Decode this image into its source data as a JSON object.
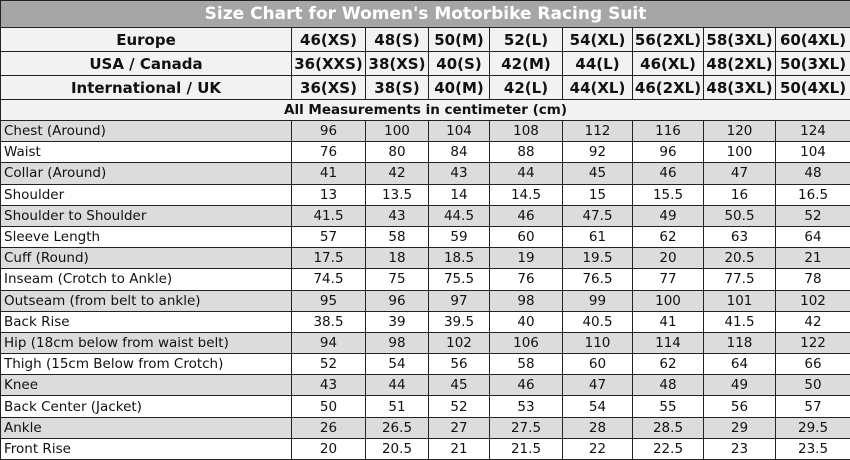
{
  "title": "Size Chart for Women's Motorbike Racing Suit",
  "size_rows": [
    {
      "label": "Europe",
      "sizes": [
        "46(XS)",
        "48(S)",
        "50(M)",
        "52(L)",
        "54(XL)",
        "56(2XL)",
        "58(3XL)",
        "60(4XL)"
      ]
    },
    {
      "label": "USA / Canada",
      "sizes": [
        "36(XXS)",
        "38(XS)",
        "40(S)",
        "42(M)",
        "44(L)",
        "46(XL)",
        "48(2XL)",
        "50(3XL)"
      ]
    },
    {
      "label": "International / UK",
      "sizes": [
        "36(XS)",
        "38(S)",
        "40(M)",
        "42(L)",
        "44(XL)",
        "46(2XL)",
        "48(3XL)",
        "50(4XL)"
      ]
    }
  ],
  "note": "All Measurements in centimeter (cm)",
  "measurements": [
    {
      "label": "Chest (Around)",
      "values": [
        "96",
        "100",
        "104",
        "108",
        "112",
        "116",
        "120",
        "124"
      ]
    },
    {
      "label": "Waist",
      "values": [
        "76",
        "80",
        "84",
        "88",
        "92",
        "96",
        "100",
        "104"
      ]
    },
    {
      "label": "Collar (Around)",
      "values": [
        "41",
        "42",
        "43",
        "44",
        "45",
        "46",
        "47",
        "48"
      ]
    },
    {
      "label": "Shoulder",
      "values": [
        "13",
        "13.5",
        "14",
        "14.5",
        "15",
        "15.5",
        "16",
        "16.5"
      ]
    },
    {
      "label": "Shoulder to Shoulder",
      "values": [
        "41.5",
        "43",
        "44.5",
        "46",
        "47.5",
        "49",
        "50.5",
        "52"
      ]
    },
    {
      "label": "Sleeve Length",
      "values": [
        "57",
        "58",
        "59",
        "60",
        "61",
        "62",
        "63",
        "64"
      ]
    },
    {
      "label": "Cuff (Round)",
      "values": [
        "17.5",
        "18",
        "18.5",
        "19",
        "19.5",
        "20",
        "20.5",
        "21"
      ]
    },
    {
      "label": "Inseam (Crotch to Ankle)",
      "values": [
        "74.5",
        "75",
        "75.5",
        "76",
        "76.5",
        "77",
        "77.5",
        "78"
      ]
    },
    {
      "label": "Outseam (from belt to ankle)",
      "values": [
        "95",
        "96",
        "97",
        "98",
        "99",
        "100",
        "101",
        "102"
      ]
    },
    {
      "label": "Back Rise",
      "values": [
        "38.5",
        "39",
        "39.5",
        "40",
        "40.5",
        "41",
        "41.5",
        "42"
      ]
    },
    {
      "label": "Hip (18cm below from waist belt)",
      "values": [
        "94",
        "98",
        "102",
        "106",
        "110",
        "114",
        "118",
        "122"
      ]
    },
    {
      "label": "Thigh (15cm Below from Crotch)",
      "values": [
        "52",
        "54",
        "56",
        "58",
        "60",
        "62",
        "64",
        "66"
      ]
    },
    {
      "label": "Knee",
      "values": [
        "43",
        "44",
        "45",
        "46",
        "47",
        "48",
        "49",
        "50"
      ]
    },
    {
      "label": "Back Center (Jacket)",
      "values": [
        "50",
        "51",
        "52",
        "53",
        "54",
        "55",
        "56",
        "57"
      ]
    },
    {
      "label": "Ankle",
      "values": [
        "26",
        "26.5",
        "27",
        "27.5",
        "28",
        "28.5",
        "29",
        "29.5"
      ]
    },
    {
      "label": "Front Rise",
      "values": [
        "20",
        "20.5",
        "21",
        "21.5",
        "22",
        "22.5",
        "23",
        "23.5"
      ]
    }
  ]
}
